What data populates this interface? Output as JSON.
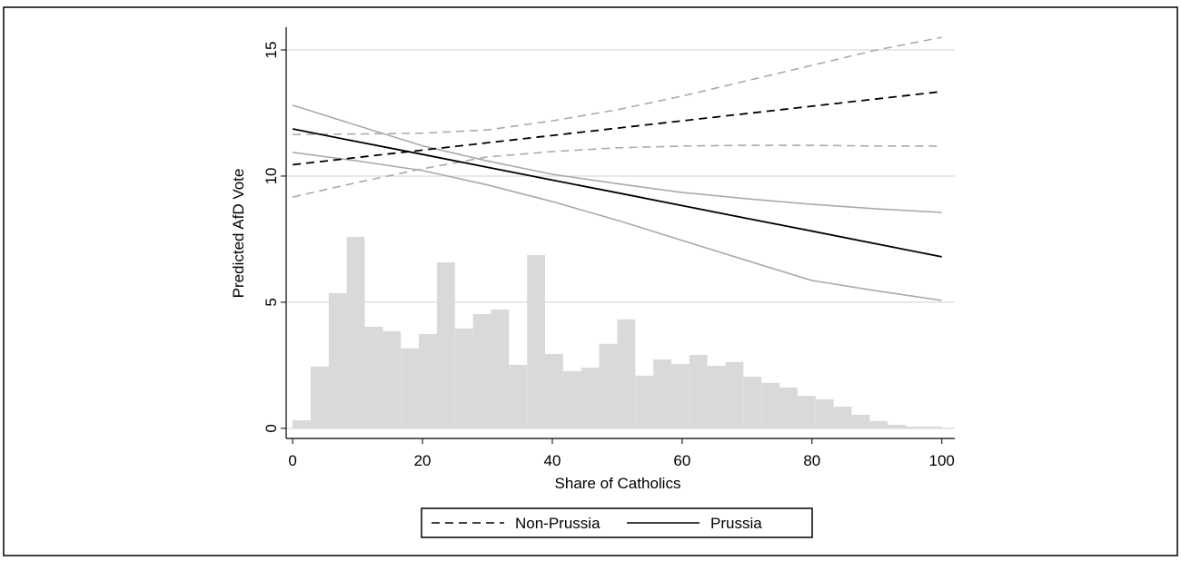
{
  "chart_data": {
    "type": "line",
    "x_label": "Share of Catholics",
    "y_label": "Predicted AfD Vote",
    "xlim": [
      -1,
      102
    ],
    "ylim": [
      -0.4,
      15.9
    ],
    "xticks": [
      0,
      20,
      40,
      60,
      80,
      100
    ],
    "yticks": [
      0,
      5,
      10,
      15
    ],
    "grid": true,
    "x": [
      0,
      10,
      20,
      30,
      40,
      50,
      60,
      70,
      80,
      90,
      100
    ],
    "series": [
      {
        "name": "Non-Prussia",
        "color": "#000000",
        "ci_color": "#aaaaaa",
        "dashed": true,
        "values": [
          10.45,
          10.74,
          11.03,
          11.32,
          11.61,
          11.9,
          12.19,
          12.48,
          12.77,
          13.06,
          13.35
        ],
        "upper": [
          11.65,
          11.67,
          11.7,
          11.83,
          12.19,
          12.63,
          13.17,
          13.78,
          14.39,
          15.0,
          15.5
        ],
        "lower": [
          9.17,
          9.75,
          10.29,
          10.76,
          10.97,
          11.12,
          11.19,
          11.22,
          11.22,
          11.19,
          11.19
        ]
      },
      {
        "name": "Prussia",
        "color": "#000000",
        "ci_color": "#aaaaaa",
        "dashed": false,
        "values": [
          11.87,
          11.36,
          10.86,
          10.35,
          9.84,
          9.34,
          8.83,
          8.32,
          7.82,
          7.31,
          6.8
        ],
        "upper": [
          12.81,
          12.0,
          11.2,
          10.6,
          10.07,
          9.7,
          9.35,
          9.1,
          8.88,
          8.7,
          8.56
        ],
        "lower": [
          10.94,
          10.6,
          10.22,
          9.65,
          8.99,
          8.25,
          7.45,
          6.65,
          5.86,
          5.45,
          5.07
        ]
      }
    ],
    "histogram": {
      "color": "#d9d9d9",
      "bins": [
        0,
        2.78,
        5.56,
        8.33,
        11.11,
        13.89,
        16.67,
        19.44,
        22.22,
        25,
        27.78,
        30.56,
        33.33,
        36.11,
        38.89,
        41.67,
        44.44,
        47.22,
        50,
        52.78,
        55.56,
        58.33,
        61.11,
        63.89,
        66.67,
        69.44,
        72.22,
        75,
        77.78,
        80.56,
        83.33,
        86.11,
        88.89,
        91.67,
        94.44,
        97.22,
        100
      ],
      "counts": [
        0.32,
        2.45,
        5.36,
        7.59,
        4.03,
        3.85,
        3.17,
        3.74,
        6.58,
        3.96,
        4.53,
        4.71,
        2.52,
        6.87,
        2.95,
        2.27,
        2.41,
        3.35,
        4.32,
        2.09,
        2.73,
        2.55,
        2.91,
        2.48,
        2.63,
        2.05,
        1.8,
        1.62,
        1.29,
        1.15,
        0.86,
        0.54,
        0.29,
        0.14,
        0.07,
        0.07
      ]
    }
  }
}
